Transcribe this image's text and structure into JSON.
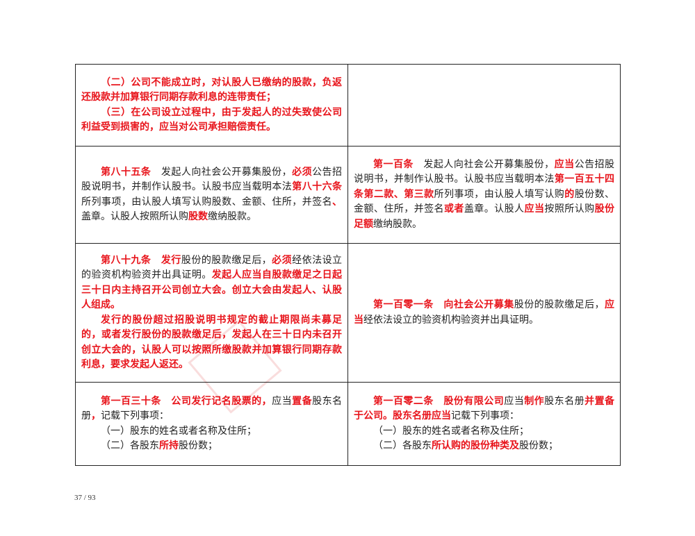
{
  "rows": [
    {
      "left": [
        [
          {
            "t": "（二）公司不能成立时，对认股人已缴纳的股款，负返还股款并加算银行同期存款利息的连带责任；",
            "red": true
          }
        ],
        [
          {
            "t": "（三）在公司设立过程中，由于发起人的过失致使公司利益受到损害的，应当对公司承担赔偿责任。",
            "red": true
          }
        ]
      ],
      "right": []
    },
    {
      "left": [
        [
          {
            "t": "第八十五条",
            "red": true
          },
          {
            "t": "　发起人向社会公开募集股份，",
            "red": false
          },
          {
            "t": "必须",
            "red": true
          },
          {
            "t": "公告招股说明书，并制作认股书。认股书应当载明本法",
            "red": false
          },
          {
            "t": "第八十六条",
            "red": true
          },
          {
            "t": "所列事项，由认股人填写认购股数、金额、住所，并签名",
            "red": false
          },
          {
            "t": "、",
            "red": true
          },
          {
            "t": "盖章。认股人按照所认购",
            "red": false
          },
          {
            "t": "股数",
            "red": true
          },
          {
            "t": "缴纳股款。",
            "red": false
          }
        ]
      ],
      "right": [
        [
          {
            "t": "第一百条",
            "red": true
          },
          {
            "t": "　发起人向社会公开募集股份，",
            "red": false
          },
          {
            "t": "应当",
            "red": true
          },
          {
            "t": "公告招股说明书，并制作认股书。认股书应当载明本法",
            "red": false
          },
          {
            "t": "第一百五十四条第二款、第三款",
            "red": true
          },
          {
            "t": "所列事项，由认股人填写认购",
            "red": false
          },
          {
            "t": "的",
            "red": true
          },
          {
            "t": "股份数、金额、住所，并签名",
            "red": false
          },
          {
            "t": "或者",
            "red": true
          },
          {
            "t": "盖章。认股人",
            "red": false
          },
          {
            "t": "应当",
            "red": true
          },
          {
            "t": "按照所认购",
            "red": false
          },
          {
            "t": "股份足额",
            "red": true
          },
          {
            "t": "缴纳股款。",
            "red": false
          }
        ]
      ]
    },
    {
      "left": [
        [
          {
            "t": "第八十九条",
            "red": true
          },
          {
            "t": "　",
            "red": false
          },
          {
            "t": "发行",
            "red": true
          },
          {
            "t": "股份的股款缴足后，",
            "red": false
          },
          {
            "t": "必须",
            "red": true
          },
          {
            "t": "经依法设立的验资机构验资并出具证明。",
            "red": false
          },
          {
            "t": "发起人应当自股款缴足之日起三十日内主持召开公司创立大会。创立大会由发起人、认股人组成。",
            "red": true
          }
        ],
        [
          {
            "t": "发行的股份超过招股说明书规定的截止期限尚未募足的，或者发行股份的股款缴足后，发起人在三十日内未召开创立大会的，认股人可以按照所缴股款并加算银行同期存款利息，要求发起人返还。",
            "red": true
          }
        ]
      ],
      "right": [
        [
          {
            "t": "第一百零一条",
            "red": true
          },
          {
            "t": "　",
            "red": false
          },
          {
            "t": "向社会公开募集",
            "red": true
          },
          {
            "t": "股份的股款缴足后，",
            "red": false
          },
          {
            "t": "应当",
            "red": true
          },
          {
            "t": "经依法设立的验资机构验资并出具证明。",
            "red": false
          }
        ]
      ]
    },
    {
      "left": [
        [
          {
            "t": "第一百三十条",
            "red": true
          },
          {
            "t": "　",
            "red": false
          },
          {
            "t": "公司发行记名股票的，",
            "red": true
          },
          {
            "t": "应当",
            "red": false
          },
          {
            "t": "置备",
            "red": true
          },
          {
            "t": "股东名册",
            "red": false
          },
          {
            "t": "，",
            "red": true
          },
          {
            "t": "记载下列事项：",
            "red": false
          }
        ],
        [
          {
            "t": "（一）股东的姓名或者名称及住所；",
            "red": false
          }
        ],
        [
          {
            "t": "（二）各股东",
            "red": false
          },
          {
            "t": "所持",
            "red": true
          },
          {
            "t": "股份数；",
            "red": false
          }
        ]
      ],
      "right": [
        [
          {
            "t": "第一百零二条",
            "red": true
          },
          {
            "t": "　",
            "red": false
          },
          {
            "t": "股份有限公司",
            "red": true
          },
          {
            "t": "应当",
            "red": false
          },
          {
            "t": "制作",
            "red": true
          },
          {
            "t": "股东名册",
            "red": false
          },
          {
            "t": "并置备于公司。股东名册应当",
            "red": true
          },
          {
            "t": "记载下列事项：",
            "red": false
          }
        ],
        [
          {
            "t": "（一）股东的姓名或者名称及住所；",
            "red": false
          }
        ],
        [
          {
            "t": "（二）各股东",
            "red": false
          },
          {
            "t": "所认购的股份种类及",
            "red": true
          },
          {
            "t": "股份数；",
            "red": false
          }
        ]
      ]
    }
  ],
  "footer": {
    "page_number": "37 / 93"
  }
}
